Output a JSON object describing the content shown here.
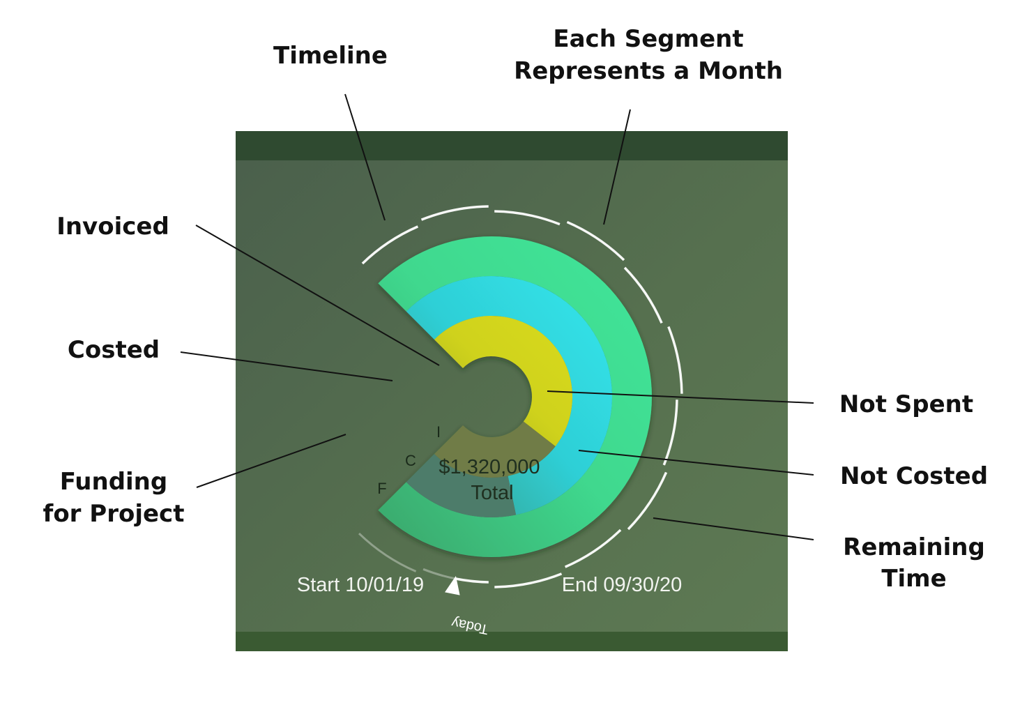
{
  "callouts": {
    "timeline": "Timeline",
    "segments_line1": "Each Segment",
    "segments_line2": "Represents a Month",
    "invoiced": "Invoiced",
    "costed": "Costed",
    "funding_line1": "Funding",
    "funding_line2": "for Project",
    "not_spent": "Not Spent",
    "not_costed": "Not Costed",
    "remaining_line1": "Remaining",
    "remaining_line2": "Time"
  },
  "gauge": {
    "ring_letters": {
      "funding": "F",
      "costed": "C",
      "invoiced": "I"
    },
    "total_amount": "$1,320,000",
    "total_label": "Total",
    "today_label": "Today",
    "start_label": "Start 10/01/19",
    "end_label": "End 09/30/20",
    "timeline_months": 12,
    "elapsed_months": 10.5,
    "funding_fraction": 1.0,
    "costed_fraction": 0.79,
    "invoiced_fraction": 0.64
  },
  "colors": {
    "card_dark": "#4a5f4a",
    "card_light": "#5a7550",
    "funding_green": "#3fd08a",
    "costed_cyan": "#2fd6e0",
    "invoiced_yellow": "#c9cf1e",
    "not_spent": "#727a43",
    "not_costed": "#4f7a68",
    "timeline_white": "#ffffff"
  }
}
